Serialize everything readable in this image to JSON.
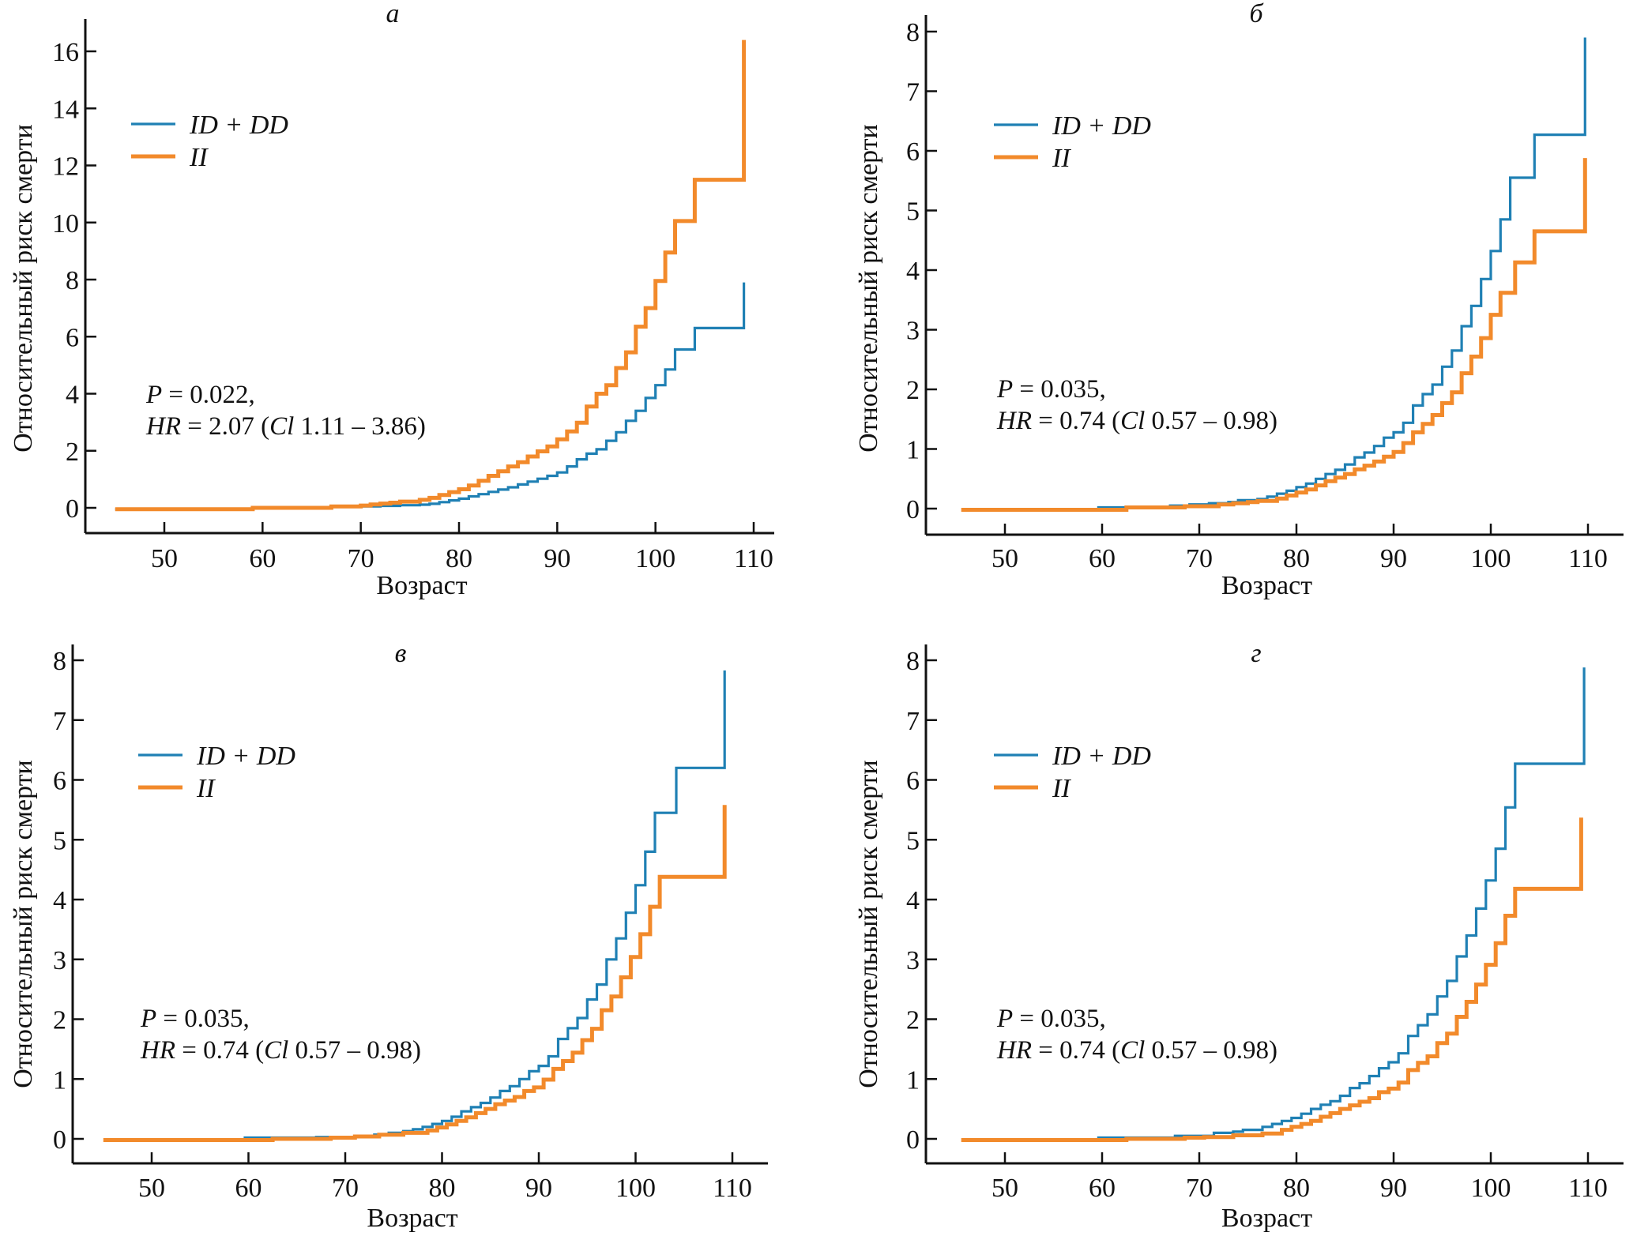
{
  "figure": {
    "legend": [
      {
        "name": "ID + DD",
        "color": "#1f80b4"
      },
      {
        "name": "II",
        "color": "#f28a2b"
      }
    ]
  },
  "chart_data": [
    {
      "type": "line",
      "step": true,
      "panel": "а",
      "title": "а",
      "xlabel": "Возраст",
      "ylabel": "Относительный риск смерти",
      "xlim": [
        43,
        112
      ],
      "ylim": [
        -0.9,
        17.2
      ],
      "xticks": [
        50,
        60,
        70,
        80,
        90,
        100,
        110
      ],
      "yticks": [
        0,
        2,
        4,
        6,
        8,
        10,
        12,
        14,
        16
      ],
      "legend_position": "top-left",
      "annotation": {
        "p_label": "P",
        "p_text": " = 0.022,",
        "hr_label": "HR",
        "hr_text": " = 2.07 (",
        "ci_label": "Cl",
        "ci_text": " 1.11 – 3.86)"
      },
      "series": [
        {
          "name": "ID + DD",
          "color": "#1f80b4",
          "x": [
            45,
            59,
            64,
            67,
            70,
            72,
            74,
            76,
            77,
            78,
            79,
            80,
            81,
            82,
            83,
            84,
            85,
            86,
            87,
            88,
            89,
            90,
            91,
            92,
            93,
            94,
            95,
            96,
            97,
            98,
            99,
            100,
            101,
            102,
            104,
            109,
            109
          ],
          "y": [
            -0.05,
            -0.02,
            0.0,
            0.03,
            0.05,
            0.07,
            0.09,
            0.11,
            0.14,
            0.2,
            0.26,
            0.32,
            0.4,
            0.48,
            0.56,
            0.64,
            0.72,
            0.82,
            0.92,
            1.02,
            1.12,
            1.24,
            1.45,
            1.7,
            1.9,
            2.05,
            2.35,
            2.65,
            3.05,
            3.4,
            3.85,
            4.3,
            4.85,
            5.55,
            6.3,
            6.3,
            7.9
          ]
        },
        {
          "name": "II",
          "color": "#f28a2b",
          "x": [
            45,
            59,
            67,
            70,
            71,
            72,
            73,
            74,
            76,
            77,
            78,
            79,
            80,
            81,
            82,
            83,
            84,
            85,
            86,
            87,
            88,
            89,
            90,
            91,
            92,
            93,
            94,
            95,
            96,
            97,
            98,
            99,
            100,
            101,
            102,
            104,
            109,
            109
          ],
          "y": [
            -0.05,
            0.0,
            0.05,
            0.08,
            0.12,
            0.15,
            0.18,
            0.22,
            0.28,
            0.35,
            0.45,
            0.55,
            0.65,
            0.78,
            0.95,
            1.12,
            1.28,
            1.45,
            1.6,
            1.8,
            1.98,
            2.15,
            2.4,
            2.68,
            2.98,
            3.55,
            4.0,
            4.3,
            4.9,
            5.45,
            6.35,
            7.0,
            7.95,
            8.95,
            10.05,
            11.5,
            13.0,
            16.4
          ]
        }
      ]
    },
    {
      "type": "line",
      "step": true,
      "panel": "б",
      "title": "б",
      "xlabel": "Возраст",
      "ylabel": "Относительный риск смерти",
      "xlim": [
        43,
        112
      ],
      "ylim": [
        -0.42,
        8.3
      ],
      "xticks": [
        50,
        60,
        70,
        80,
        90,
        100,
        110
      ],
      "yticks": [
        0,
        1,
        2,
        3,
        4,
        5,
        6,
        7,
        8
      ],
      "legend_position": "top-left",
      "annotation": {
        "p_label": "P",
        "p_text": " = 0.035,",
        "hr_label": "HR",
        "hr_text": " = 0.74 (",
        "ci_label": "Cl",
        "ci_text": " 0.57 – 0.98)"
      },
      "series": [
        {
          "name": "ID + DD",
          "color": "#1f80b4",
          "x": [
            59.5,
            62.5,
            67,
            69,
            71,
            73,
            74,
            76,
            77,
            78,
            79,
            80,
            81,
            82,
            83,
            84,
            85,
            86,
            87,
            88,
            89,
            90,
            91,
            92,
            93,
            94,
            95,
            96,
            97,
            98,
            99,
            100,
            101,
            102,
            104.5,
            109.7,
            109.7
          ],
          "y": [
            0.02,
            0.03,
            0.05,
            0.07,
            0.09,
            0.11,
            0.14,
            0.16,
            0.2,
            0.25,
            0.3,
            0.36,
            0.42,
            0.5,
            0.58,
            0.65,
            0.74,
            0.86,
            0.94,
            1.05,
            1.19,
            1.28,
            1.44,
            1.73,
            1.92,
            2.08,
            2.38,
            2.65,
            3.06,
            3.4,
            3.85,
            4.32,
            4.85,
            5.55,
            6.27,
            6.27,
            7.9
          ]
        },
        {
          "name": "II",
          "color": "#f28a2b",
          "x": [
            45.5,
            62.5,
            68.5,
            72,
            73.5,
            75,
            76,
            78,
            79,
            80,
            81,
            82,
            83,
            84,
            85,
            86,
            87,
            88,
            89,
            90,
            91,
            92,
            93,
            94,
            95,
            96,
            97,
            98,
            99,
            100,
            101,
            102.5,
            104.5,
            109.7,
            109.7
          ],
          "y": [
            -0.02,
            0.02,
            0.04,
            0.07,
            0.09,
            0.11,
            0.13,
            0.17,
            0.22,
            0.27,
            0.32,
            0.39,
            0.46,
            0.52,
            0.58,
            0.66,
            0.72,
            0.79,
            0.87,
            0.95,
            1.1,
            1.28,
            1.42,
            1.57,
            1.77,
            1.95,
            2.27,
            2.55,
            2.86,
            3.25,
            3.62,
            4.13,
            4.65,
            4.65,
            5.88
          ]
        }
      ]
    },
    {
      "type": "line",
      "step": true,
      "panel": "в",
      "title": "в",
      "xlabel": "Возраст",
      "ylabel": "Относительный риск смерти",
      "xlim": [
        43,
        112
      ],
      "ylim": [
        -0.42,
        8.3
      ],
      "xticks": [
        50,
        60,
        70,
        80,
        90,
        100,
        110
      ],
      "yticks": [
        0,
        1,
        2,
        3,
        4,
        5,
        6,
        7,
        8
      ],
      "legend_position": "top-left",
      "annotation": {
        "p_label": "P",
        "p_text": " = 0.035,",
        "hr_label": "HR",
        "hr_text": " = 0.74 (",
        "ci_label": "Cl",
        "ci_text": " 0.57 – 0.98)"
      },
      "series": [
        {
          "name": "ID + DD",
          "color": "#1f80b4",
          "x": [
            59.5,
            62.5,
            67,
            71,
            73,
            74.5,
            76,
            77,
            78,
            79,
            80,
            81,
            82,
            83,
            84,
            85,
            86,
            87,
            88,
            89,
            90,
            91,
            92,
            93,
            94,
            95,
            96,
            97,
            98,
            99,
            100,
            101,
            102,
            104.2,
            109.2,
            109.2
          ],
          "y": [
            0.02,
            0.02,
            0.03,
            0.05,
            0.07,
            0.1,
            0.13,
            0.16,
            0.2,
            0.25,
            0.3,
            0.37,
            0.46,
            0.53,
            0.6,
            0.69,
            0.8,
            0.88,
            1.0,
            1.13,
            1.22,
            1.38,
            1.67,
            1.85,
            2.02,
            2.33,
            2.58,
            3.0,
            3.35,
            3.78,
            4.24,
            4.8,
            5.45,
            6.2,
            6.2,
            7.83
          ]
        },
        {
          "name": "II",
          "color": "#f28a2b",
          "x": [
            45,
            62.5,
            68.5,
            71,
            73.5,
            76,
            78.5,
            79.5,
            80.5,
            81.5,
            82.5,
            83.5,
            84.5,
            85.5,
            86.5,
            87.5,
            88.5,
            89.5,
            90.5,
            91.5,
            92.5,
            93.5,
            94.5,
            95.5,
            96.5,
            97.5,
            98.5,
            99.5,
            100.5,
            101.5,
            102.5,
            104.3,
            109.2,
            109.2
          ],
          "y": [
            -0.02,
            0.0,
            0.02,
            0.04,
            0.07,
            0.1,
            0.14,
            0.19,
            0.24,
            0.3,
            0.36,
            0.43,
            0.5,
            0.58,
            0.64,
            0.7,
            0.8,
            0.86,
            0.99,
            1.17,
            1.3,
            1.44,
            1.65,
            1.84,
            2.15,
            2.38,
            2.7,
            3.04,
            3.42,
            3.88,
            4.38,
            4.38,
            5.58,
            5.58
          ]
        }
      ]
    },
    {
      "type": "line",
      "step": true,
      "panel": "г",
      "title": "г",
      "xlabel": "Возраст",
      "ylabel": "Относительный риск смерти",
      "xlim": [
        43,
        112
      ],
      "ylim": [
        -0.42,
        8.3
      ],
      "xticks": [
        50,
        60,
        70,
        80,
        90,
        100,
        110
      ],
      "yticks": [
        0,
        1,
        2,
        3,
        4,
        5,
        6,
        7,
        8
      ],
      "legend_position": "top-left",
      "annotation": {
        "p_label": "P",
        "p_text": " = 0.035,",
        "hr_label": "HR",
        "hr_text": " = 0.74 (",
        "ci_label": "Cl",
        "ci_text": " 0.57 – 0.98)"
      },
      "series": [
        {
          "name": "ID + DD",
          "color": "#1f80b4",
          "x": [
            59.5,
            67.5,
            71.5,
            73.5,
            74.5,
            76.5,
            77.5,
            78.5,
            79.5,
            80.5,
            81.5,
            82.5,
            83.5,
            84.5,
            85.5,
            86.5,
            87.5,
            88.5,
            89.5,
            90.5,
            91.5,
            92.5,
            93.5,
            94.5,
            95.5,
            96.5,
            97.5,
            98.5,
            99.5,
            100.5,
            101.5,
            102.5,
            104.5,
            109.6,
            109.6
          ],
          "y": [
            0.02,
            0.05,
            0.1,
            0.12,
            0.15,
            0.2,
            0.25,
            0.3,
            0.35,
            0.42,
            0.5,
            0.57,
            0.63,
            0.72,
            0.85,
            0.93,
            1.05,
            1.18,
            1.28,
            1.43,
            1.72,
            1.9,
            2.08,
            2.38,
            2.64,
            3.05,
            3.4,
            3.85,
            4.32,
            4.85,
            5.54,
            6.27,
            6.27,
            7.88,
            7.88
          ]
        },
        {
          "name": "II",
          "color": "#f28a2b",
          "x": [
            45.5,
            62.5,
            68.5,
            70.5,
            73.5,
            76.5,
            78.5,
            79.5,
            80.5,
            81.5,
            82.5,
            83.5,
            84.5,
            85.5,
            86.5,
            87.5,
            88.5,
            89.5,
            90.5,
            91.5,
            92.5,
            93.5,
            94.5,
            95.5,
            96.5,
            97.5,
            98.5,
            99.5,
            100.5,
            101.5,
            102.5,
            104.5,
            109.3,
            109.3
          ],
          "y": [
            -0.02,
            0.0,
            0.02,
            0.03,
            0.06,
            0.09,
            0.15,
            0.2,
            0.25,
            0.3,
            0.37,
            0.43,
            0.5,
            0.56,
            0.62,
            0.68,
            0.78,
            0.84,
            0.94,
            1.15,
            1.27,
            1.38,
            1.6,
            1.76,
            2.04,
            2.29,
            2.58,
            2.91,
            3.27,
            3.73,
            4.18,
            4.18,
            5.37,
            5.37
          ]
        }
      ]
    }
  ]
}
